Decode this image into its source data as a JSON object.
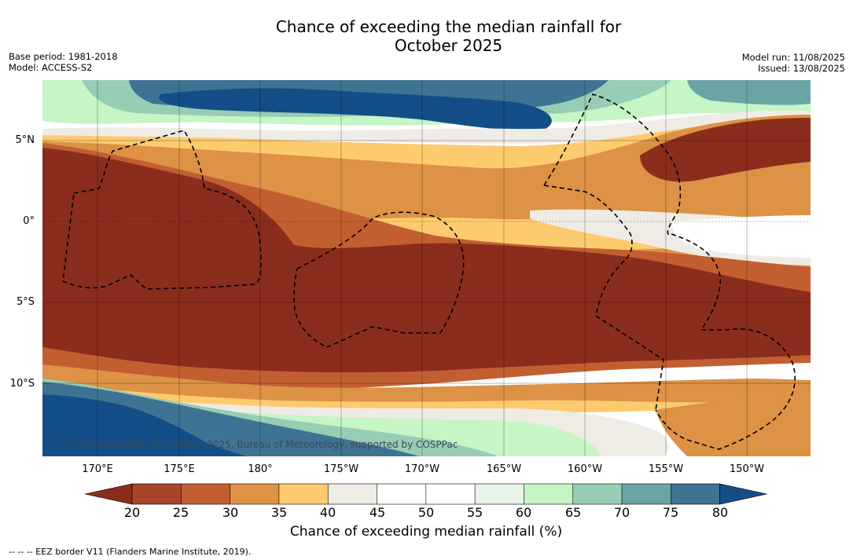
{
  "title": {
    "line1": "Chance of exceeding the median rainfall for",
    "line2": "October 2025"
  },
  "meta_left": {
    "base_period": "Base period: 1981-2018",
    "model": "Model: ACCESS-S2"
  },
  "meta_right": {
    "model_run": "Model run: 11/08/2025",
    "issued": "Issued: 13/08/2025"
  },
  "map": {
    "lat_labels": [
      "5°N",
      "0°",
      "5°S",
      "10°S"
    ],
    "lon_labels": [
      "170°E",
      "175°E",
      "180°",
      "175°W",
      "170°W",
      "165°W",
      "160°W",
      "155°W",
      "150°W"
    ],
    "credit": "© Commonwealth of Australia 2025, Bureau of Meteorology, supported by COSPPac"
  },
  "colorbar": {
    "ticks": [
      "20",
      "25",
      "30",
      "35",
      "40",
      "45",
      "50",
      "55",
      "60",
      "65",
      "70",
      "75",
      "80"
    ],
    "colors": {
      "below20": "#8b2d1c",
      "c20_25": "#a9452b",
      "c25_30": "#c25f31",
      "c30_35": "#dd9245",
      "c35_40": "#fdcb6e",
      "c40_45": "#efebe5",
      "c45_50": "#ffffff",
      "c50_55": "#ffffff",
      "c55_60": "#e8f4e8",
      "c60_65": "#c6f5c6",
      "c65_70": "#96cdb4",
      "c70_75": "#6aa4a4",
      "c75_80": "#3f7394",
      "above80": "#134e88"
    },
    "label": "Chance of exceeding median rainfall (%)"
  },
  "eez_note": "-- -- -- EEZ border V11 (Flanders Marine Institute, 2019)."
}
